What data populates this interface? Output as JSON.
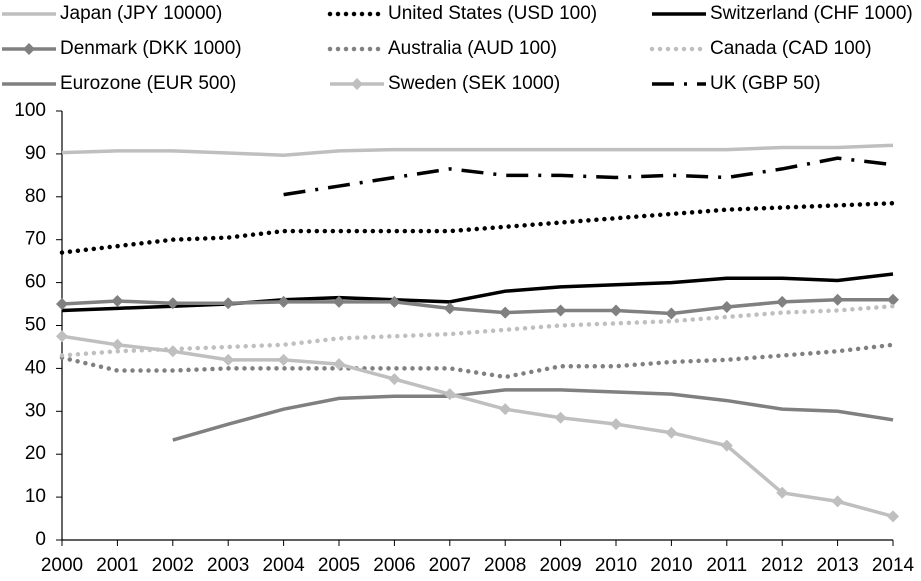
{
  "chart_data": {
    "type": "line",
    "categories": [
      "2000",
      "2001",
      "2002",
      "2003",
      "2004",
      "2005",
      "2006",
      "2007",
      "2008",
      "2009",
      "2010",
      "2010",
      "2011",
      "2012",
      "2013",
      "2014"
    ],
    "ylim": [
      0,
      100
    ],
    "yticks": [
      0,
      10,
      20,
      30,
      40,
      50,
      60,
      70,
      80,
      90,
      100
    ],
    "grid": false,
    "legend": "top",
    "series": [
      {
        "name": "Japan (JPY 10000)",
        "color": "#bfbfbf",
        "dash": "solid",
        "marker": "none",
        "values": [
          90.3,
          90.7,
          90.7,
          90.2,
          89.7,
          90.7,
          91,
          91,
          91,
          91,
          91,
          91,
          91,
          91.5,
          91.5,
          92
        ]
      },
      {
        "name": "United States (USD 100)",
        "color": "#000000",
        "dash": "dotted",
        "marker": "none",
        "values": [
          67,
          68.5,
          70,
          70.5,
          72,
          72,
          72,
          72,
          73,
          74,
          75,
          76,
          77,
          77.5,
          78,
          78.5
        ]
      },
      {
        "name": "Switzerland (CHF 1000)",
        "color": "#000000",
        "dash": "solid",
        "marker": "none",
        "values": [
          53.5,
          54,
          54.5,
          55,
          56,
          56.5,
          56,
          55.5,
          58,
          59,
          59.5,
          60,
          61,
          61,
          60.5,
          62
        ]
      },
      {
        "name": "Denmark (DKK 1000)",
        "color": "#808080",
        "dash": "solid",
        "marker": "diamond",
        "values": [
          55,
          55.7,
          55.2,
          55.2,
          55.5,
          55.5,
          55.5,
          54,
          53,
          53.5,
          53.5,
          52.8,
          54.3,
          55.5,
          56,
          56
        ]
      },
      {
        "name": "Australia (AUD 100)",
        "color": "#808080",
        "dash": "dotted",
        "marker": "none",
        "values": [
          42.5,
          39.5,
          39.5,
          40,
          40,
          40,
          40,
          40,
          38,
          40.5,
          40.5,
          41.5,
          42,
          43,
          44,
          45.5
        ]
      },
      {
        "name": "Canada (CAD 100)",
        "color": "#bfbfbf",
        "dash": "dotted",
        "marker": "none",
        "values": [
          43,
          44,
          44.5,
          45,
          45.5,
          47,
          47.5,
          48,
          49,
          50,
          50.5,
          51,
          52,
          53,
          53.5,
          54.5
        ]
      },
      {
        "name": "Eurozone (EUR 500)",
        "color": "#808080",
        "dash": "solid",
        "marker": "none",
        "values": [
          null,
          null,
          23.3,
          27,
          30.5,
          33,
          33.5,
          33.5,
          35,
          35,
          34.5,
          34,
          32.5,
          30.5,
          30,
          28
        ]
      },
      {
        "name": "Sweden (SEK 1000)",
        "color": "#bfbfbf",
        "dash": "solid",
        "marker": "diamond",
        "values": [
          47.5,
          45.5,
          44,
          42,
          42,
          41,
          37.5,
          34,
          30.5,
          28.5,
          27,
          25,
          22,
          11,
          9,
          5.5
        ]
      },
      {
        "name": "UK (GBP 50)",
        "color": "#000000",
        "dash": "dashdot",
        "marker": "none",
        "values": [
          null,
          null,
          null,
          null,
          80.5,
          82.5,
          84.5,
          86.5,
          85,
          85,
          84.5,
          85,
          84.5,
          86.5,
          89,
          87.5
        ]
      }
    ]
  }
}
